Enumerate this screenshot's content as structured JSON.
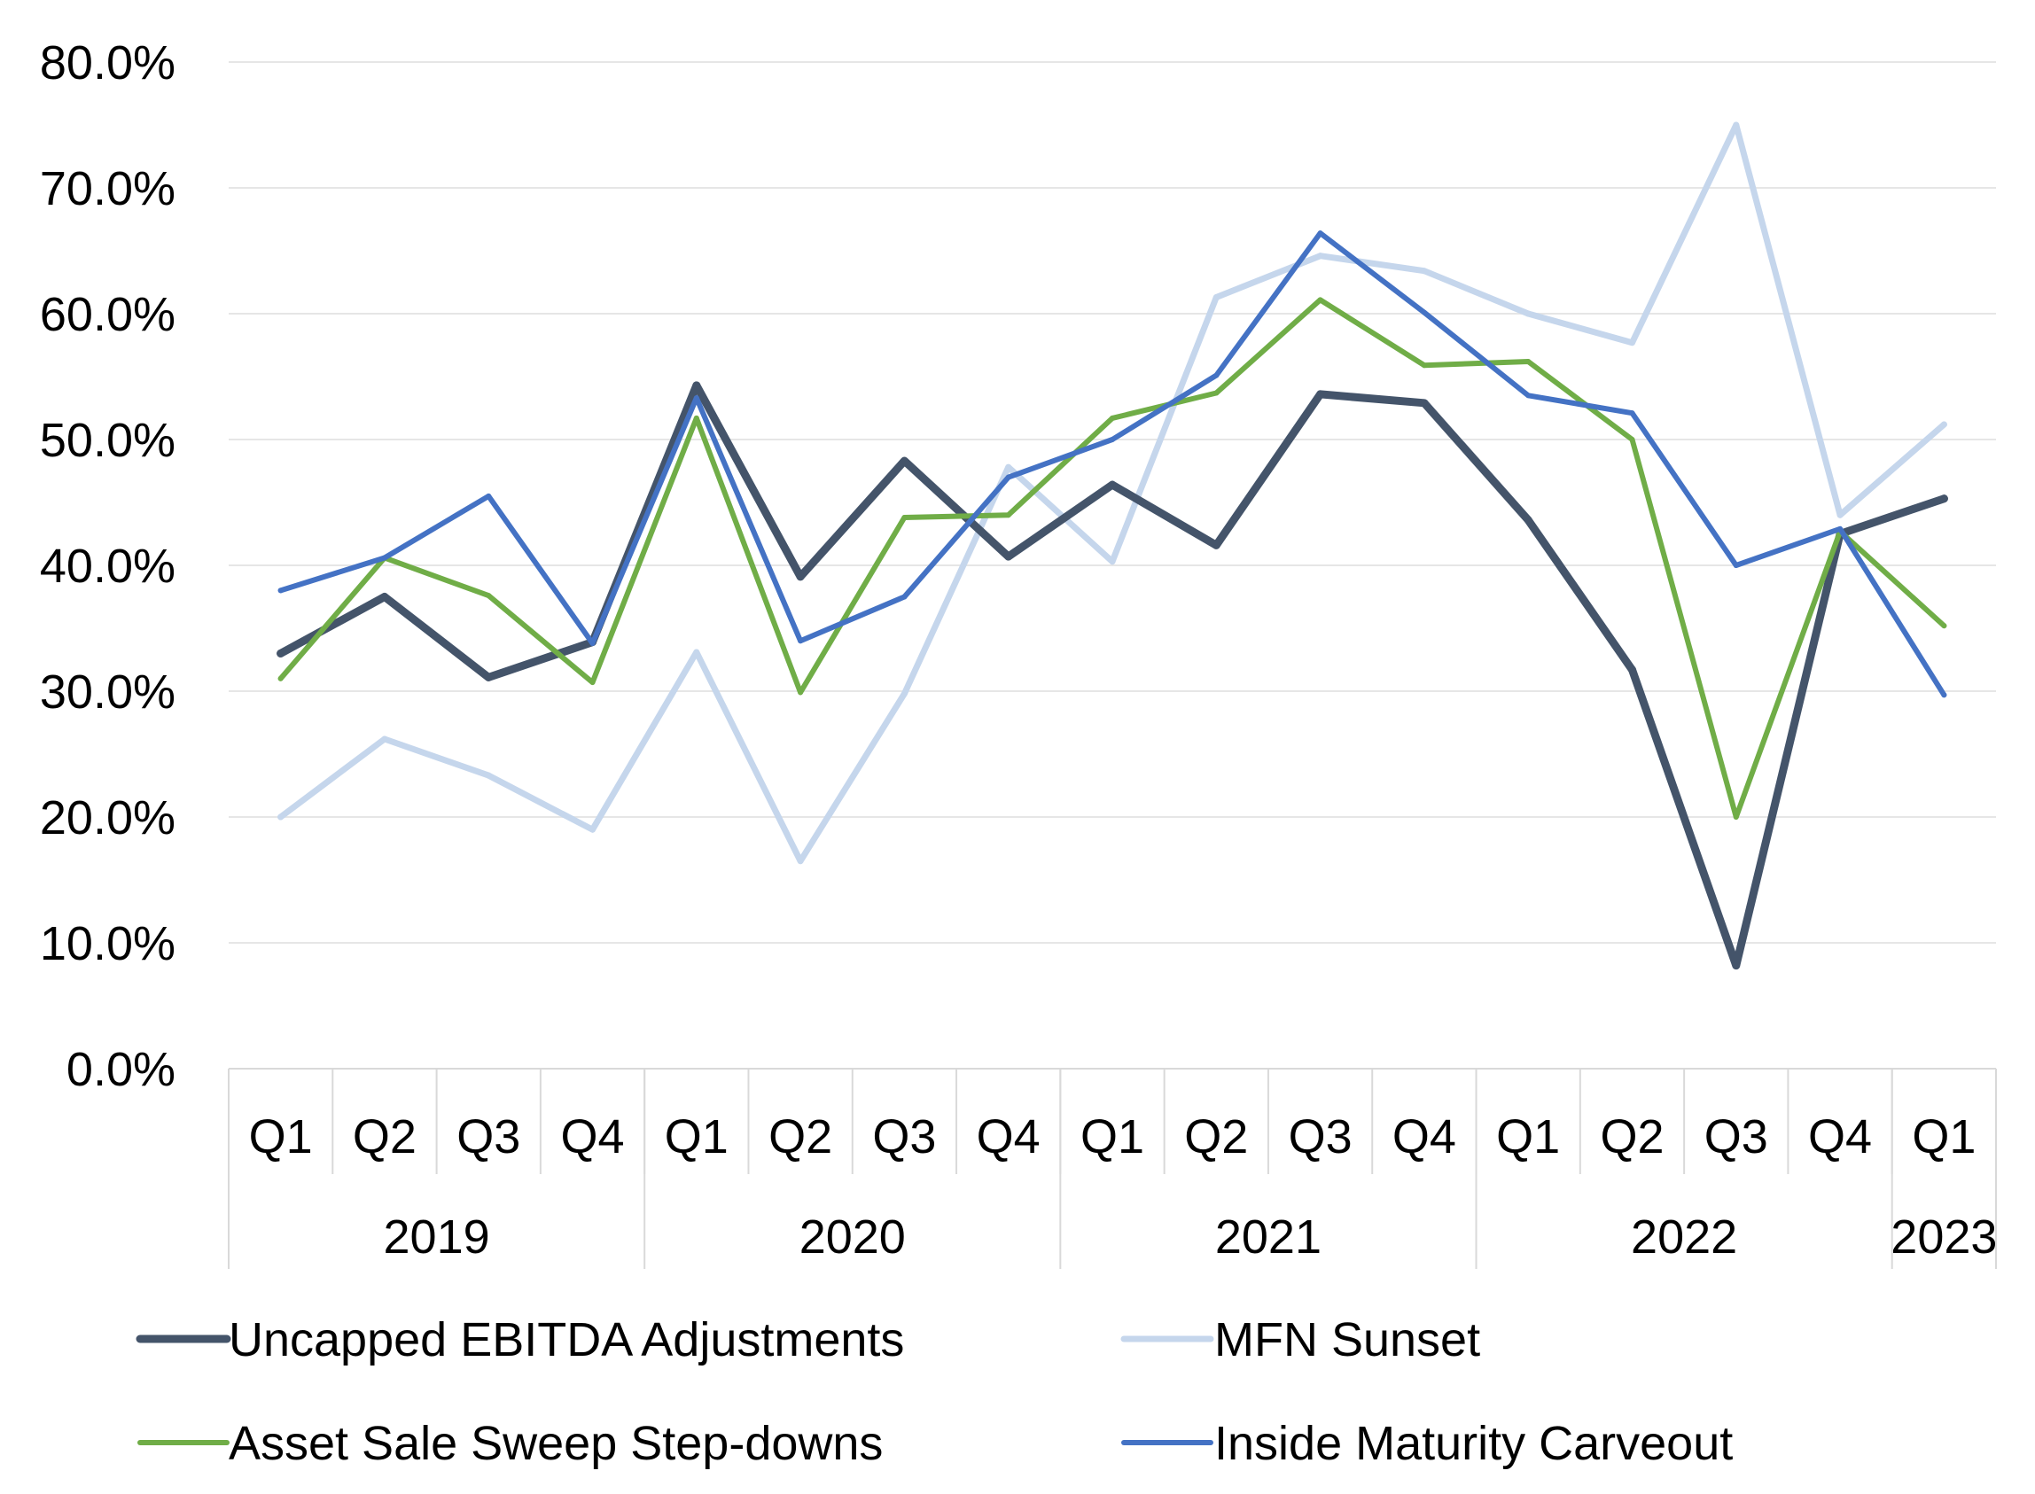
{
  "chart_data": {
    "type": "line",
    "title": "",
    "xlabel": "",
    "ylabel": "",
    "ylim": [
      0,
      80
    ],
    "y_ticks": [
      "0.0%",
      "10.0%",
      "20.0%",
      "30.0%",
      "40.0%",
      "50.0%",
      "60.0%",
      "70.0%",
      "80.0%"
    ],
    "grid": "horizontal",
    "legend_position": "bottom",
    "categories": [
      "Q1",
      "Q2",
      "Q3",
      "Q4",
      "Q1",
      "Q2",
      "Q3",
      "Q4",
      "Q1",
      "Q2",
      "Q3",
      "Q4",
      "Q1",
      "Q2",
      "Q3",
      "Q4",
      "Q1"
    ],
    "years": [
      {
        "label": "2019",
        "span": 4
      },
      {
        "label": "2020",
        "span": 4
      },
      {
        "label": "2021",
        "span": 4
      },
      {
        "label": "2022",
        "span": 4
      },
      {
        "label": "2023",
        "span": 1
      }
    ],
    "series": [
      {
        "name": "MFN Sunset",
        "color": "#c5d6ec",
        "width": 7,
        "values": [
          20.0,
          26.2,
          23.3,
          19.0,
          33.1,
          16.5,
          29.8,
          47.8,
          40.3,
          61.3,
          64.6,
          63.4,
          60.0,
          57.7,
          75.0,
          44.0,
          51.2
        ]
      },
      {
        "name": "Uncapped EBITDA Adjustments",
        "color": "#44546a",
        "width": 9,
        "values": [
          33.0,
          37.5,
          31.1,
          33.9,
          54.3,
          39.1,
          48.3,
          40.7,
          46.4,
          41.6,
          53.6,
          52.9,
          43.6,
          31.7,
          8.2,
          42.5,
          45.3
        ]
      },
      {
        "name": "Asset Sale Sweep Step-downs",
        "color": "#70ad47",
        "width": 6,
        "values": [
          31.0,
          40.6,
          37.6,
          30.7,
          51.7,
          29.9,
          43.8,
          44.0,
          51.7,
          53.7,
          61.1,
          55.9,
          56.2,
          50.0,
          20.0,
          42.7,
          35.2
        ]
      },
      {
        "name": "Inside Maturity Carveout",
        "color": "#4472c4",
        "width": 6,
        "values": [
          38.0,
          40.6,
          45.5,
          33.8,
          53.3,
          34.0,
          37.5,
          47.0,
          50.0,
          55.1,
          66.4,
          60.1,
          53.5,
          52.1,
          40.0,
          42.9,
          29.7
        ]
      }
    ],
    "legend": [
      {
        "name": "Uncapped EBITDA Adjustments",
        "color": "#44546a",
        "width": 9
      },
      {
        "name": "MFN Sunset",
        "color": "#c5d6ec",
        "width": 7
      },
      {
        "name": "Asset Sale Sweep Step-downs",
        "color": "#70ad47",
        "width": 6
      },
      {
        "name": "Inside Maturity Carveout",
        "color": "#4472c4",
        "width": 6
      }
    ]
  }
}
